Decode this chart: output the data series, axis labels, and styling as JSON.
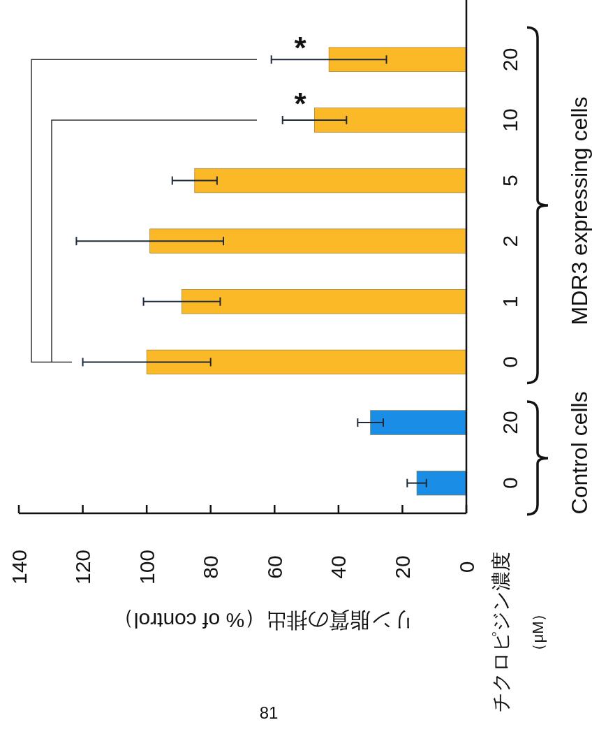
{
  "chart_data": {
    "type": "bar",
    "orientation": "horizontal",
    "xlabel": "リン脂質の排出（% of control）",
    "ylabel": "チクロピジン濃度",
    "categories": [
      "20",
      "10",
      "5",
      "2",
      "1",
      "0",
      "20",
      "0"
    ],
    "values": [
      43,
      47.5,
      85,
      99,
      89,
      100,
      30,
      15.5
    ],
    "errors": [
      18,
      10,
      7,
      23,
      12,
      20,
      4,
      3
    ],
    "colors": [
      "#fbb928",
      "#fbb928",
      "#fbb928",
      "#fbb928",
      "#fbb928",
      "#fbb928",
      "#1a8ee6",
      "#1a8ee6"
    ],
    "xlim": [
      140,
      0
    ],
    "xticks": [
      140,
      120,
      100,
      80,
      60,
      40,
      20,
      0
    ],
    "annotations": [
      "*",
      "*",
      "MDR3 expressing cells",
      "Control cells",
      "81",
      "（μM）"
    ]
  }
}
